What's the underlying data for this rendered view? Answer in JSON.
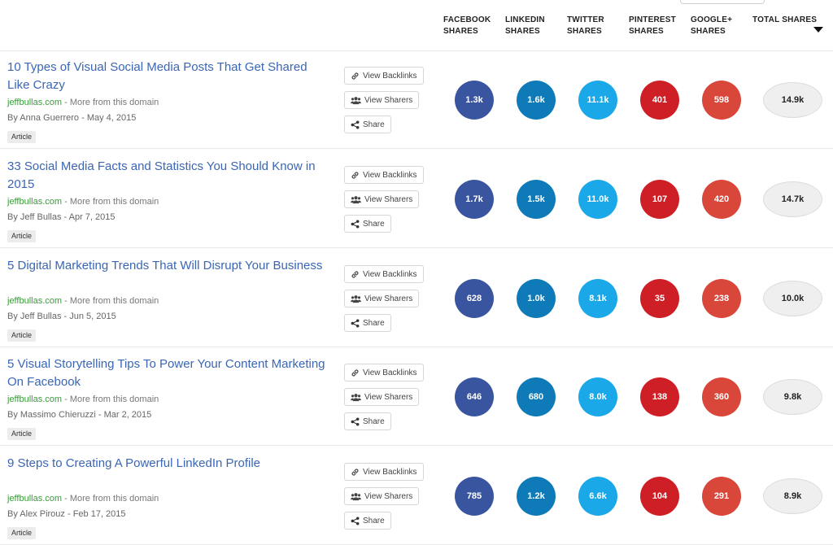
{
  "colors": {
    "facebook": "#3a559f",
    "linkedin": "#0e7bb8",
    "twitter": "#1aa8e8",
    "pinterest": "#cf1f26",
    "googleplus": "#d9463a",
    "title_link": "#3a66b5",
    "domain": "#3b9a3b"
  },
  "columns": [
    {
      "line1": "FACEBOOK",
      "line2": "SHARES"
    },
    {
      "line1": "LINKEDIN",
      "line2": "SHARES"
    },
    {
      "line1": "TWITTER",
      "line2": "SHARES"
    },
    {
      "line1": "PINTEREST",
      "line2": "SHARES"
    },
    {
      "line1": "GOOGLE+",
      "line2": "SHARES"
    },
    {
      "line1": "TOTAL SHARES",
      "line2": ""
    }
  ],
  "sort_icon": "caret-down-icon",
  "buttons": {
    "backlinks": "View Backlinks",
    "sharers": "View Sharers",
    "share": "Share"
  },
  "more_text": " - More from this domain",
  "articles": [
    {
      "title": "10 Types of Visual Social Media Posts That Get Shared Like Crazy",
      "domain": "jeffbullas.com",
      "byline": "By Anna Guerrero - May 4, 2015",
      "type": "Article",
      "facebook": "1.3k",
      "linkedin": "1.6k",
      "twitter": "11.1k",
      "pinterest": "401",
      "googleplus": "598",
      "total": "14.9k"
    },
    {
      "title": "33 Social Media Facts and Statistics You Should Know in 2015",
      "domain": "jeffbullas.com",
      "byline": "By Jeff Bullas - Apr 7, 2015",
      "type": "Article",
      "facebook": "1.7k",
      "linkedin": "1.5k",
      "twitter": "11.0k",
      "pinterest": "107",
      "googleplus": "420",
      "total": "14.7k"
    },
    {
      "title": "5 Digital Marketing Trends That Will Disrupt Your Business",
      "domain": "jeffbullas.com",
      "byline": "By Jeff Bullas - Jun 5, 2015",
      "type": "Article",
      "facebook": "628",
      "linkedin": "1.0k",
      "twitter": "8.1k",
      "pinterest": "35",
      "googleplus": "238",
      "total": "10.0k"
    },
    {
      "title": "5 Visual Storytelling Tips To Power Your Content Marketing On Facebook",
      "domain": "jeffbullas.com",
      "byline": "By Massimo Chieruzzi - Mar 2, 2015",
      "type": "Article",
      "facebook": "646",
      "linkedin": "680",
      "twitter": "8.0k",
      "pinterest": "138",
      "googleplus": "360",
      "total": "9.8k"
    },
    {
      "title": "9 Steps to Creating A Powerful LinkedIn Profile",
      "domain": "jeffbullas.com",
      "byline": "By Alex Pirouz - Feb 17, 2015",
      "type": "Article",
      "facebook": "785",
      "linkedin": "1.2k",
      "twitter": "6.6k",
      "pinterest": "104",
      "googleplus": "291",
      "total": "8.9k"
    }
  ]
}
